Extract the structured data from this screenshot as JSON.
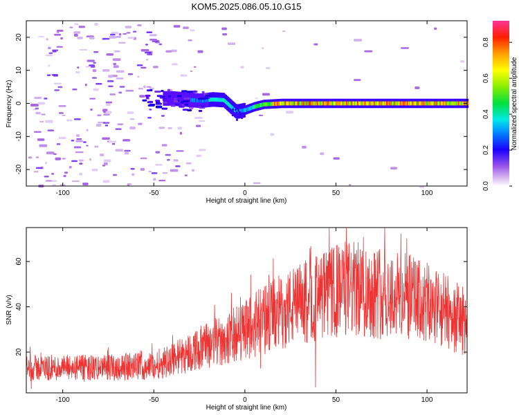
{
  "title": "KOM5.2025.086.05.10.G15",
  "chart_data": [
    {
      "type": "heatmap",
      "xlabel": "Height of straight line (km)",
      "ylabel": "Frequency (Hz)",
      "xlim": [
        -120,
        122
      ],
      "ylim": [
        -25,
        25
      ],
      "xticks": [
        -100,
        -50,
        0,
        50,
        100
      ],
      "yticks": [
        -20,
        -10,
        0,
        10,
        20
      ],
      "colorbar": {
        "label": "Normalized spectral amplitude",
        "range": [
          0,
          0.92
        ],
        "ticks": [
          0.0,
          0.2,
          0.4,
          0.6,
          0.8
        ],
        "tick_labels": [
          "0.0",
          "0.2",
          "0.4",
          "0.6",
          "0.8"
        ]
      },
      "ridge": {
        "description_points_km_hz": [
          [
            -40,
            1.5
          ],
          [
            -25,
            0.8
          ],
          [
            -18,
            1.2
          ],
          [
            -12,
            1.0
          ],
          [
            -8,
            -1.0
          ],
          [
            -5,
            -2.5
          ],
          [
            0,
            -2.0
          ],
          [
            5,
            -1.0
          ],
          [
            10,
            -0.3
          ],
          [
            20,
            0.0
          ],
          [
            60,
            0.0
          ],
          [
            100,
            0.0
          ],
          [
            122,
            0.0
          ]
        ]
      }
    },
    {
      "type": "line",
      "xlabel": "Height of straight line (km)",
      "ylabel": "SNR (v/v)",
      "xlim": [
        -120,
        122
      ],
      "ylim": [
        2,
        75
      ],
      "xticks": [
        -100,
        -50,
        0,
        50,
        100
      ],
      "yticks": [
        20,
        40,
        60
      ],
      "series": [
        {
          "color": "#ee3333",
          "trend_points_km_snr": [
            [
              -120,
              13
            ],
            [
              -80,
              13
            ],
            [
              -50,
              14
            ],
            [
              -30,
              20
            ],
            [
              -10,
              26
            ],
            [
              0,
              30
            ],
            [
              20,
              38
            ],
            [
              40,
              44
            ],
            [
              55,
              48
            ],
            [
              70,
              47
            ],
            [
              90,
              44
            ],
            [
              110,
              38
            ],
            [
              122,
              33
            ]
          ]
        }
      ]
    }
  ]
}
